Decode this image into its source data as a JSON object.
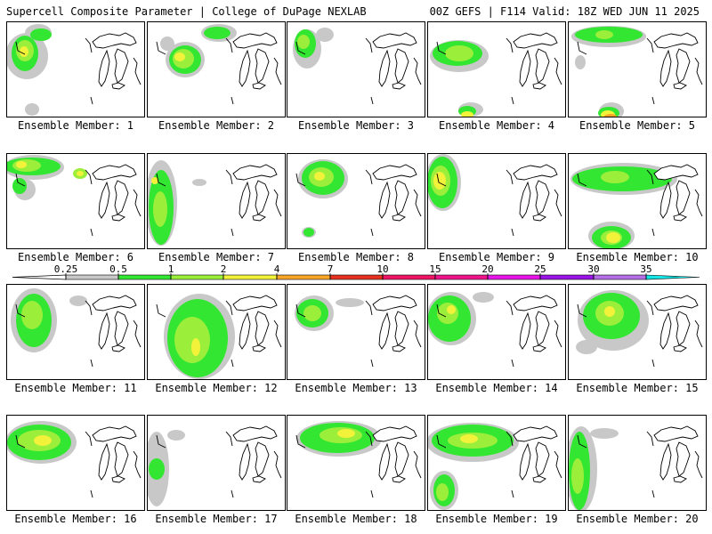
{
  "header": {
    "left_title": "Supercell Composite Parameter | College of DuPage NEXLAB",
    "right_title": "00Z GEFS | F114 Valid: 18Z WED JUN 11 2025"
  },
  "member_label_prefix": "Ensemble Member:",
  "members": [
    "1",
    "2",
    "3",
    "4",
    "5",
    "6",
    "7",
    "8",
    "9",
    "10",
    "11",
    "12",
    "13",
    "14",
    "15",
    "16",
    "17",
    "18",
    "19",
    "20"
  ],
  "colorbar": {
    "levels": [
      "0.25",
      "0.5",
      "1",
      "2",
      "4",
      "7",
      "10",
      "15",
      "20",
      "25",
      "30",
      "35"
    ],
    "colors": [
      "#c8c8c8",
      "#32e632",
      "#9bef3a",
      "#f2f23a",
      "#f7a628",
      "#e6321e",
      "#f01464",
      "#f0148c",
      "#e614e6",
      "#9b14e6",
      "#b46ee6",
      "#14e6e6"
    ]
  }
}
